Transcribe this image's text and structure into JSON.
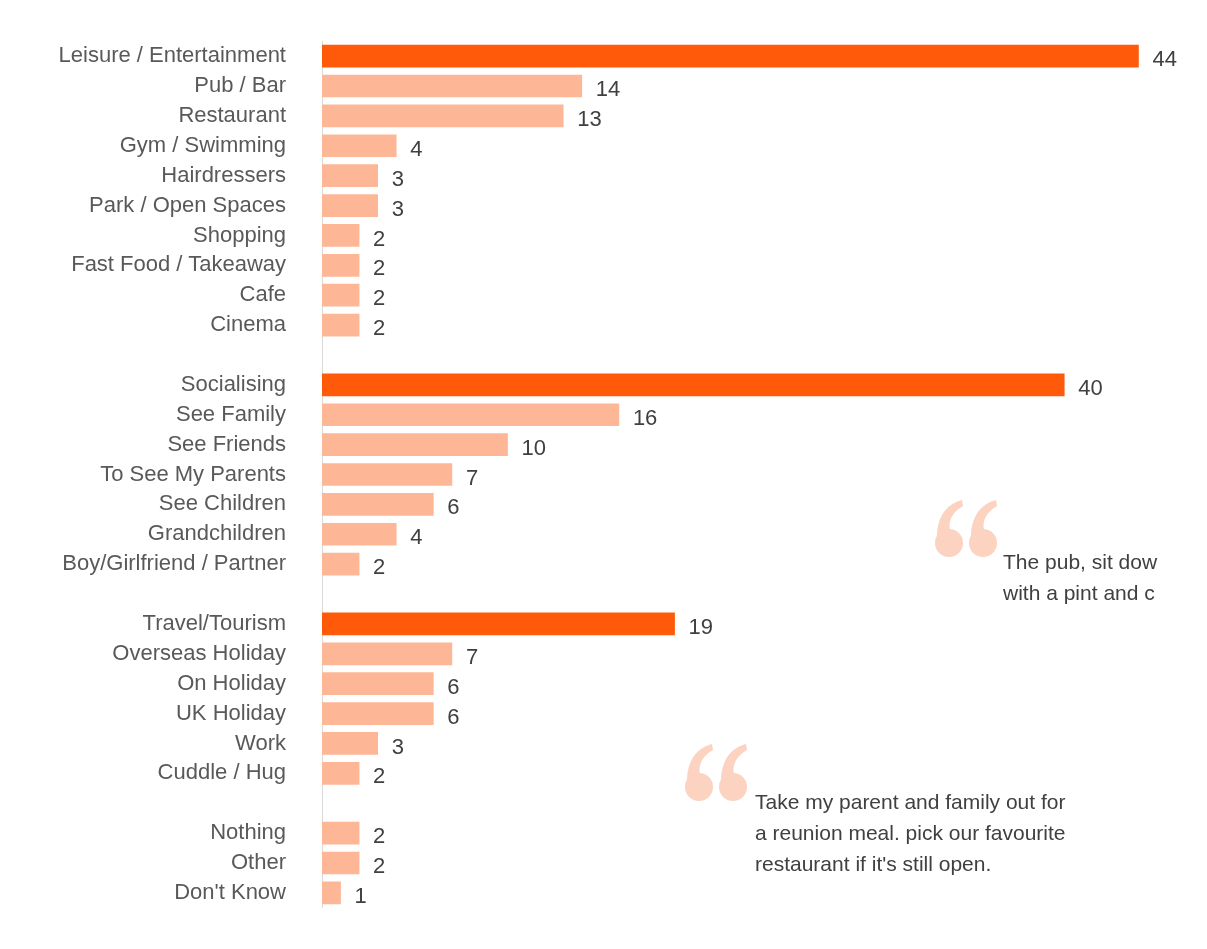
{
  "chart_data": {
    "type": "bar",
    "orientation": "horizontal",
    "categories": [
      "Leisure / Entertainment",
      "Pub / Bar",
      "Restaurant",
      "Gym / Swimming",
      "Hairdressers",
      "Park / Open Spaces",
      "Shopping",
      "Fast Food / Takeaway",
      "Cafe",
      "Cinema",
      null,
      "Socialising",
      "See Family",
      "See Friends",
      "To See My Parents",
      "See Children",
      "Grandchildren",
      "Boy/Girlfriend / Partner",
      null,
      "Travel/Tourism",
      "Overseas Holiday",
      "On Holiday",
      "UK Holiday",
      "Work",
      "Cuddle / Hug",
      null,
      "Nothing",
      "Other",
      "Don't Know"
    ],
    "values": [
      44,
      14,
      13,
      4,
      3,
      3,
      2,
      2,
      2,
      2,
      null,
      40,
      16,
      10,
      7,
      6,
      4,
      2,
      null,
      19,
      7,
      6,
      6,
      3,
      2,
      null,
      2,
      2,
      1
    ],
    "colors": [
      "#ff5a0a",
      "#fdb797",
      "#fdb797",
      "#fdb797",
      "#fdb797",
      "#fdb797",
      "#fdb797",
      "#fdb797",
      "#fdb797",
      "#fdb797",
      "#fdb797",
      "#ff5a0a",
      "#fdb797",
      "#fdb797",
      "#fdb797",
      "#fdb797",
      "#fdb797",
      "#fdb797",
      "#fdb797",
      "#ff5a0a",
      "#fdb797",
      "#fdb797",
      "#fdb797",
      "#fdb797",
      "#fdb797",
      "#fdb797",
      "#fdb797",
      "#fdb797",
      "#fdb797"
    ],
    "data_labels": true,
    "grid": false,
    "tick_labels": "y",
    "annotations": [
      "The pub, sit dow\nwith a pint and c",
      "Take my parent and family out for\na reunion meal. pick our favourite\nrestaurant if it's still open."
    ]
  }
}
